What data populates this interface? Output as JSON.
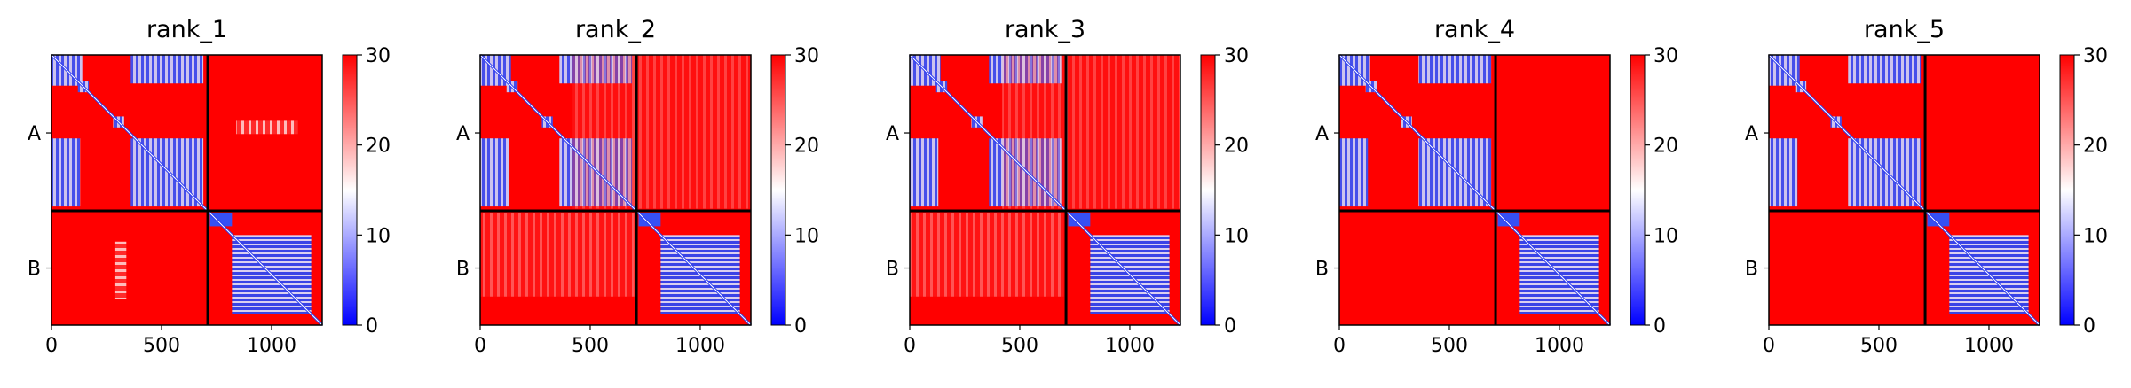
{
  "chart_data": [
    {
      "type": "heatmap",
      "title": "rank_1",
      "x_ticks": [
        0,
        500,
        1000
      ],
      "xlim": [
        0,
        1230
      ],
      "y_categories": [
        "A",
        "B"
      ],
      "chain_boundary": 710,
      "colorbar": {
        "min": 0,
        "max": 30,
        "ticks": [
          0,
          10,
          20,
          30
        ],
        "colormap": "bwr"
      }
    },
    {
      "type": "heatmap",
      "title": "rank_2",
      "x_ticks": [
        0,
        500,
        1000
      ],
      "xlim": [
        0,
        1230
      ],
      "y_categories": [
        "A",
        "B"
      ],
      "chain_boundary": 710,
      "colorbar": {
        "min": 0,
        "max": 30,
        "ticks": [
          0,
          10,
          20,
          30
        ],
        "colormap": "bwr"
      }
    },
    {
      "type": "heatmap",
      "title": "rank_3",
      "x_ticks": [
        0,
        500,
        1000
      ],
      "xlim": [
        0,
        1230
      ],
      "y_categories": [
        "A",
        "B"
      ],
      "chain_boundary": 710,
      "colorbar": {
        "min": 0,
        "max": 30,
        "ticks": [
          0,
          10,
          20,
          30
        ],
        "colormap": "bwr"
      }
    },
    {
      "type": "heatmap",
      "title": "rank_4",
      "x_ticks": [
        0,
        500,
        1000
      ],
      "xlim": [
        0,
        1230
      ],
      "y_categories": [
        "A",
        "B"
      ],
      "chain_boundary": 710,
      "colorbar": {
        "min": 0,
        "max": 30,
        "ticks": [
          0,
          10,
          20,
          30
        ],
        "colormap": "bwr"
      }
    },
    {
      "type": "heatmap",
      "title": "rank_5",
      "x_ticks": [
        0,
        500,
        1000
      ],
      "xlim": [
        0,
        1230
      ],
      "y_categories": [
        "A",
        "B"
      ],
      "chain_boundary": 710,
      "colorbar": {
        "min": 0,
        "max": 30,
        "ticks": [
          0,
          10,
          20,
          30
        ],
        "colormap": "bwr"
      }
    }
  ],
  "colors": {
    "high": "#ff0000",
    "mid": "#ffffff",
    "low": "#0000ff",
    "frame": "#000000"
  }
}
